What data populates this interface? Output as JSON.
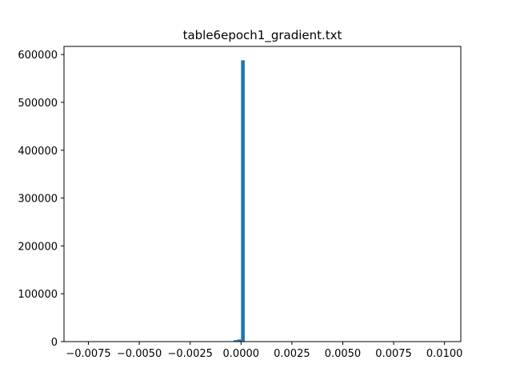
{
  "chart_data": {
    "type": "histogram",
    "title": "table6epoch1_gradient.txt",
    "xlabel": "",
    "ylabel": "",
    "xlim": [
      -0.0087,
      0.0108
    ],
    "ylim": [
      0,
      617000
    ],
    "grid": false,
    "legend": "none",
    "bar_color": "#1f77b4",
    "bin_width": 0.000182,
    "bins": [
      {
        "x0": -0.000364,
        "x1": -0.000182,
        "count": 3000
      },
      {
        "x0": -0.000182,
        "x1": 0.0,
        "count": 4500
      },
      {
        "x0": 0.0,
        "x1": 0.000182,
        "count": 588000
      }
    ],
    "x_ticks": [
      {
        "value": -0.0075,
        "label": "−0.0075"
      },
      {
        "value": -0.005,
        "label": "−0.0050"
      },
      {
        "value": -0.0025,
        "label": "−0.0025"
      },
      {
        "value": 0.0,
        "label": "0.0000"
      },
      {
        "value": 0.0025,
        "label": "0.0025"
      },
      {
        "value": 0.005,
        "label": "0.0050"
      },
      {
        "value": 0.0075,
        "label": "0.0075"
      },
      {
        "value": 0.01,
        "label": "0.0100"
      }
    ],
    "y_ticks": [
      {
        "value": 0,
        "label": "0"
      },
      {
        "value": 100000,
        "label": "100000"
      },
      {
        "value": 200000,
        "label": "200000"
      },
      {
        "value": 300000,
        "label": "300000"
      },
      {
        "value": 400000,
        "label": "400000"
      },
      {
        "value": 500000,
        "label": "500000"
      },
      {
        "value": 600000,
        "label": "600000"
      }
    ]
  }
}
